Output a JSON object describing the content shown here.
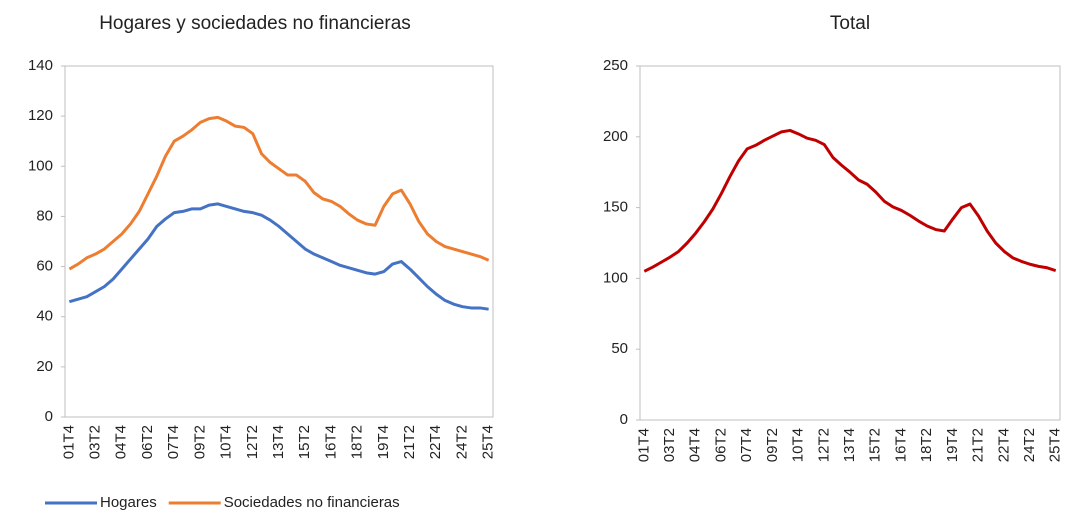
{
  "chart_data": [
    {
      "type": "line",
      "title": "Hogares y sociedades no financieras",
      "categories": [
        "01T4",
        null,
        null,
        "03T2",
        null,
        null,
        "04T4",
        null,
        null,
        "06T2",
        null,
        null,
        "07T4",
        null,
        null,
        "09T2",
        null,
        null,
        "10T4",
        null,
        null,
        "12T2",
        null,
        null,
        "13T4",
        null,
        null,
        "15T2",
        null,
        null,
        "16T4",
        null,
        null,
        "18T2",
        null,
        null,
        "19T4",
        null,
        null,
        "21T2",
        null,
        null,
        "22T4",
        null,
        null,
        "24T2",
        null,
        null,
        "25T4"
      ],
      "series": [
        {
          "name": "Hogares",
          "color": "#4472c4",
          "values": [
            46,
            47,
            48,
            50,
            52,
            55,
            59,
            63,
            67,
            71,
            76,
            79,
            81.5,
            82,
            83,
            83,
            84.5,
            85,
            84,
            83,
            82,
            81.5,
            80.5,
            78.5,
            76,
            73,
            70,
            67,
            65,
            63.5,
            62,
            60.5,
            59.5,
            58.5,
            57.5,
            57,
            58,
            61,
            62,
            59,
            55.5,
            52,
            49,
            46.5,
            45,
            44,
            43.5,
            43.5,
            43
          ]
        },
        {
          "name": "Sociedades no financieras",
          "color": "#ed7d31",
          "values": [
            59,
            61,
            63.5,
            65,
            67,
            70,
            73,
            77,
            82,
            89,
            96,
            104,
            110,
            112,
            114.5,
            117.5,
            119,
            119.5,
            118,
            116,
            115.5,
            113,
            105,
            101.5,
            99,
            96.5,
            96.5,
            94,
            89.5,
            87,
            86,
            84,
            81,
            78.5,
            77,
            76.5,
            84,
            89,
            90.5,
            85,
            78,
            73,
            70,
            68,
            67,
            66,
            65,
            64,
            62.5
          ]
        }
      ],
      "ylim": [
        0,
        140
      ],
      "yticks": [
        0,
        20,
        40,
        60,
        80,
        100,
        120,
        140
      ],
      "legend": "bottom"
    },
    {
      "type": "line",
      "title": "Total",
      "categories": [
        "01T4",
        null,
        null,
        "03T2",
        null,
        null,
        "04T4",
        null,
        null,
        "06T2",
        null,
        null,
        "07T4",
        null,
        null,
        "09T2",
        null,
        null,
        "10T4",
        null,
        null,
        "12T2",
        null,
        null,
        "13T4",
        null,
        null,
        "15T2",
        null,
        null,
        "16T4",
        null,
        null,
        "18T2",
        null,
        null,
        "19T4",
        null,
        null,
        "21T2",
        null,
        null,
        "22T4",
        null,
        null,
        "24T2",
        null,
        null,
        "25T4"
      ],
      "series": [
        {
          "color": "#c00000",
          "values": [
            105,
            108,
            111.5,
            115,
            119,
            125,
            132,
            140,
            149,
            160,
            172,
            183,
            191.5,
            194,
            197.5,
            200.5,
            203.5,
            204.5,
            202,
            199,
            197.5,
            194.5,
            185.5,
            180,
            175,
            169.5,
            166.5,
            161,
            154.5,
            150.5,
            148,
            144.5,
            140.5,
            137,
            134.5,
            133.5,
            142,
            150,
            152.5,
            144,
            133.5,
            125,
            119,
            114.5,
            112,
            110,
            108.5,
            107.5,
            105.5
          ]
        }
      ],
      "ylim": [
        0,
        250
      ],
      "yticks": [
        0,
        50,
        100,
        150,
        200,
        250
      ]
    }
  ]
}
